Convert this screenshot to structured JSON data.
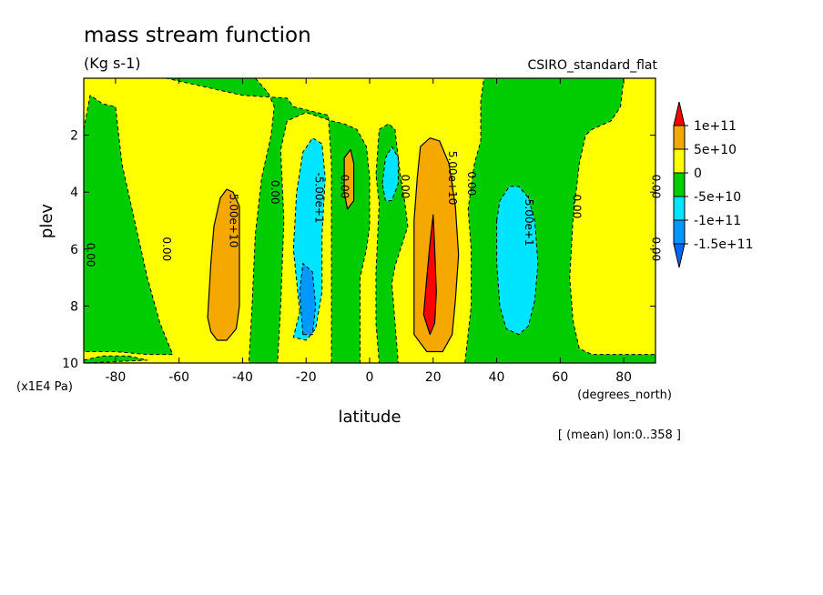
{
  "chart_data": {
    "type": "heatmap",
    "title": "mass stream function",
    "units": "(Kg s-1)",
    "dataset": "CSIRO_standard_flat",
    "xlabel": "latitude",
    "ylabel": "plev",
    "x_unit_label": "(degrees_north)",
    "y_unit_label": "(x1E4 Pa)",
    "footnote": "[ (mean) lon:0..358 ]",
    "xlim": [
      -90,
      90
    ],
    "ylim": [
      10,
      0
    ],
    "x_ticks": [
      -80,
      -60,
      -40,
      -20,
      0,
      20,
      40,
      60,
      80
    ],
    "y_ticks": [
      2,
      4,
      6,
      8,
      10
    ],
    "colorbar": {
      "labels": [
        "1e+11",
        "5e+10",
        "0",
        "-5e+10",
        "-1e+11",
        "-1.5e+11"
      ],
      "levels": [
        100000000000.0,
        50000000000.0,
        0,
        -50000000000.0,
        -100000000000.0,
        -150000000000.0
      ],
      "colors": [
        "#ff0000",
        "#f5a800",
        "#ffff00",
        "#00cc00",
        "#00e5ff",
        "#0097ff",
        "#0066ff"
      ]
    },
    "contour_labels": [
      {
        "text": "5.00e+10",
        "x": -44,
        "y": 5.0
      },
      {
        "text": "-5.00e+1",
        "x": -17,
        "y": 4.2
      },
      {
        "text": "5.00e+10",
        "x": 25,
        "y": 3.5
      },
      {
        "text": "-5.00e+1",
        "x": 49,
        "y": 5.0
      },
      {
        "text": "0.00",
        "x": -31,
        "y": 4.0
      },
      {
        "text": "0.00",
        "x": -9,
        "y": 3.8
      },
      {
        "text": "0.00",
        "x": 10,
        "y": 3.8
      },
      {
        "text": "0.00",
        "x": 31,
        "y": 3.7
      },
      {
        "text": "0.00",
        "x": 64,
        "y": 4.5
      },
      {
        "text": "0.00",
        "x": -65,
        "y": 6.0
      },
      {
        "text": "0.00",
        "x": -89,
        "y": 6.2
      },
      {
        "text": "0.00",
        "x": 89,
        "y": 6.0
      },
      {
        "text": "0.00",
        "x": 89,
        "y": 3.8
      }
    ],
    "regions": [
      {
        "level": "-5e+10",
        "points": [
          [
            -90,
            1.8
          ],
          [
            -88,
            0.6
          ],
          [
            -84,
            0.9
          ],
          [
            -80,
            1.0
          ],
          [
            -78,
            3.0
          ],
          [
            -74,
            5.0
          ],
          [
            -70,
            7.0
          ],
          [
            -66,
            8.6
          ],
          [
            -62,
            9.7
          ],
          [
            -70,
            9.7
          ],
          [
            -80,
            9.6
          ],
          [
            -90,
            9.6
          ]
        ]
      },
      {
        "level": "-5e+10",
        "points": [
          [
            -90,
            9.9
          ],
          [
            -84,
            9.75
          ],
          [
            -76,
            9.75
          ],
          [
            -70,
            9.9
          ],
          [
            -90,
            10
          ]
        ]
      },
      {
        "level": "-5e+10",
        "points": [
          [
            -64,
            0
          ],
          [
            -36,
            0
          ],
          [
            -32,
            0.5
          ],
          [
            -30,
            1.0
          ],
          [
            -31,
            2.0
          ],
          [
            -34,
            3.5
          ],
          [
            -36,
            5.5
          ],
          [
            -37,
            8.0
          ],
          [
            -38,
            10
          ],
          [
            -29,
            10
          ],
          [
            -28,
            8.0
          ],
          [
            -27,
            5.0
          ],
          [
            -28,
            2.5
          ],
          [
            -26,
            1.5
          ],
          [
            -20,
            1.2
          ],
          [
            -12,
            1.5
          ],
          [
            -8,
            1.6
          ],
          [
            -4,
            1.8
          ],
          [
            -1,
            2.4
          ],
          [
            0,
            3.5
          ],
          [
            0,
            5.2
          ],
          [
            -1,
            6.0
          ],
          [
            -2,
            6.5
          ],
          [
            -3,
            7.0
          ],
          [
            -3,
            10
          ],
          [
            -12,
            10
          ],
          [
            -12,
            5.0
          ],
          [
            -12,
            3.0
          ],
          [
            -13,
            1.3
          ],
          [
            -24,
            1.0
          ],
          [
            -26,
            0.7
          ],
          [
            -40,
            0.6
          ],
          [
            -52,
            0.3
          ]
        ]
      },
      {
        "level": "-5e+10",
        "points": [
          [
            3,
            1.8
          ],
          [
            6,
            1.6
          ],
          [
            8,
            1.8
          ],
          [
            9,
            2.8
          ],
          [
            10,
            3.7
          ],
          [
            11,
            4.3
          ],
          [
            12,
            5.2
          ],
          [
            8,
            6.6
          ],
          [
            7,
            7.2
          ],
          [
            8,
            8.6
          ],
          [
            9,
            10
          ],
          [
            3,
            10
          ],
          [
            2,
            8.6
          ],
          [
            2,
            6.8
          ],
          [
            3,
            4.4
          ],
          [
            2,
            3.4
          ]
        ]
      },
      {
        "level": "-5e+10",
        "points": [
          [
            30,
            10
          ],
          [
            32,
            8.0
          ],
          [
            32,
            6.0
          ],
          [
            31,
            4.6
          ],
          [
            32,
            3.8
          ],
          [
            33,
            3.0
          ],
          [
            35,
            2.2
          ],
          [
            35,
            0.8
          ],
          [
            36,
            0
          ],
          [
            80,
            0
          ],
          [
            79,
            1.0
          ],
          [
            76,
            1.5
          ],
          [
            70,
            1.8
          ],
          [
            68,
            2.0
          ],
          [
            66,
            3.0
          ],
          [
            64,
            5.0
          ],
          [
            63,
            7.0
          ],
          [
            64,
            8.5
          ],
          [
            66,
            9.5
          ],
          [
            70,
            9.7
          ],
          [
            80,
            9.7
          ],
          [
            90,
            9.7
          ],
          [
            90,
            10
          ]
        ]
      },
      {
        "level": "-1e+11",
        "points": [
          [
            -22,
            8.2
          ],
          [
            -24,
            6.0
          ],
          [
            -23,
            4.0
          ],
          [
            -21,
            2.6
          ],
          [
            -18,
            2.1
          ],
          [
            -15,
            2.3
          ],
          [
            -14,
            3.5
          ],
          [
            -15,
            5.5
          ],
          [
            -15,
            7.5
          ],
          [
            -17,
            8.8
          ],
          [
            -20,
            9.2
          ],
          [
            -24,
            9.1
          ]
        ]
      },
      {
        "level": "-1e+11",
        "points": [
          [
            4,
            3.7
          ],
          [
            5,
            2.8
          ],
          [
            7,
            2.4
          ],
          [
            9,
            2.8
          ],
          [
            9,
            3.7
          ],
          [
            7,
            4.3
          ],
          [
            5,
            4.3
          ]
        ]
      },
      {
        "level": "-1e+11",
        "points": [
          [
            40,
            5.0
          ],
          [
            41,
            4.3
          ],
          [
            44,
            3.8
          ],
          [
            47,
            3.8
          ],
          [
            50,
            4.2
          ],
          [
            52,
            5.0
          ],
          [
            53,
            6.5
          ],
          [
            52,
            7.8
          ],
          [
            50,
            8.7
          ],
          [
            47,
            9.0
          ],
          [
            43,
            8.8
          ],
          [
            41,
            8.0
          ],
          [
            40,
            6.5
          ]
        ]
      },
      {
        "level": "-1.5e+11",
        "points": [
          [
            -21,
            9.0
          ],
          [
            -22,
            7.5
          ],
          [
            -21,
            6.5
          ],
          [
            -18,
            6.8
          ],
          [
            -17,
            8.0
          ],
          [
            -18,
            9.0
          ]
        ]
      },
      {
        "level": "5e+10",
        "points": [
          [
            -51,
            8.4
          ],
          [
            -50,
            6.5
          ],
          [
            -49,
            5.2
          ],
          [
            -47,
            4.2
          ],
          [
            -45,
            3.9
          ],
          [
            -43,
            4.0
          ],
          [
            -41,
            4.5
          ],
          [
            -41,
            6.0
          ],
          [
            -41,
            8.0
          ],
          [
            -42,
            8.8
          ],
          [
            -45,
            9.2
          ],
          [
            -48,
            9.2
          ],
          [
            -50,
            8.9
          ]
        ]
      },
      {
        "level": "5e+10",
        "points": [
          [
            -8,
            4.0
          ],
          [
            -8,
            2.8
          ],
          [
            -6,
            2.5
          ],
          [
            -5,
            3.0
          ],
          [
            -5,
            4.3
          ],
          [
            -7,
            4.6
          ]
        ]
      },
      {
        "level": "5e+10",
        "points": [
          [
            14,
            9.0
          ],
          [
            14,
            7.0
          ],
          [
            14,
            5.0
          ],
          [
            15,
            3.5
          ],
          [
            16,
            2.4
          ],
          [
            19,
            2.1
          ],
          [
            22,
            2.2
          ],
          [
            25,
            3.0
          ],
          [
            27,
            4.5
          ],
          [
            28,
            6.2
          ],
          [
            27,
            7.8
          ],
          [
            26,
            9.0
          ],
          [
            23,
            9.6
          ],
          [
            18,
            9.6
          ]
        ]
      },
      {
        "level": "1e+11",
        "points": [
          [
            17,
            8.3
          ],
          [
            18,
            7.0
          ],
          [
            19,
            5.8
          ],
          [
            20,
            4.8
          ],
          [
            20.5,
            6.0
          ],
          [
            21,
            7.5
          ],
          [
            20.5,
            8.6
          ],
          [
            19,
            9.0
          ]
        ]
      }
    ]
  }
}
